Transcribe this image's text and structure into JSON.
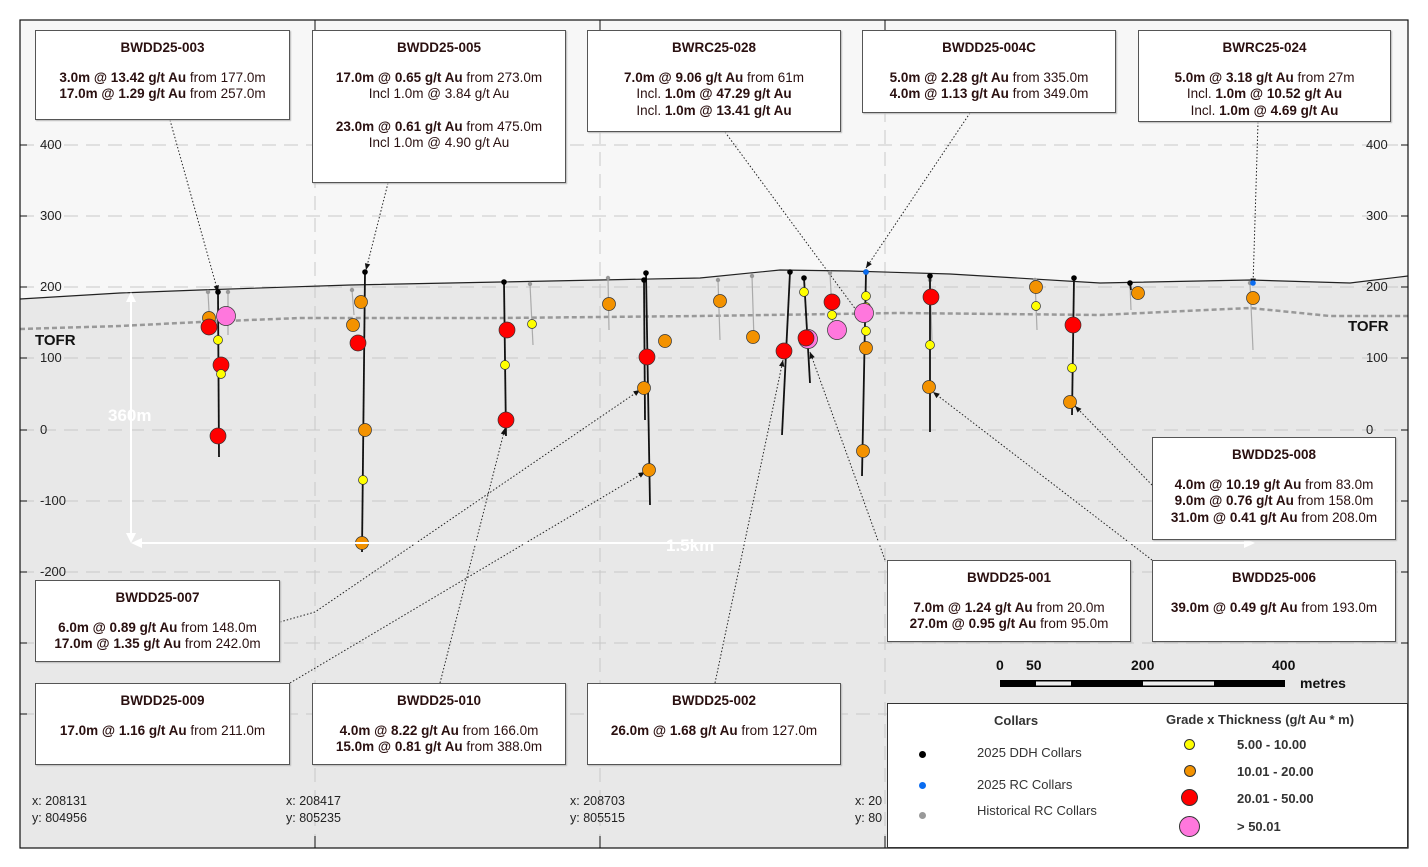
{
  "axis": {
    "elevation_ticks": [
      "400",
      "300",
      "200",
      "100",
      "0",
      "-100",
      "-200"
    ],
    "tofr_label": "TOFR",
    "vertical_scale_label": "360m",
    "horizontal_scale_label": "1.5km"
  },
  "coordinates": [
    {
      "x": "x: 208131",
      "y": "y: 804956"
    },
    {
      "x": "x: 208417",
      "y": "y: 805235"
    },
    {
      "x": "x: 208703",
      "y": "y: 805515"
    },
    {
      "x": "x: 20",
      "y": "y: 80"
    }
  ],
  "intercepts": [
    {
      "id": "BWDD25-003",
      "lines": [
        [
          [
            "3.0m @ 13.42 g/t Au",
            true
          ],
          [
            " from 177.0m",
            false
          ]
        ],
        [
          [
            "17.0m @ 1.29 g/t Au",
            true
          ],
          [
            " from 257.0m",
            false
          ]
        ]
      ]
    },
    {
      "id": "BWDD25-005",
      "lines": [
        [
          [
            "17.0m @ 0.65 g/t Au",
            true
          ],
          [
            " from 273.0m",
            false
          ]
        ],
        [
          [
            "Incl 1.0m @ 3.84 g/t Au",
            false
          ]
        ],
        [],
        [
          [
            "23.0m @ 0.61 g/t Au",
            true
          ],
          [
            " from 475.0m",
            false
          ]
        ],
        [
          [
            "Incl 1.0m @ 4.90 g/t Au",
            false
          ]
        ]
      ]
    },
    {
      "id": "BWRC25-028",
      "lines": [
        [
          [
            "7.0m @ 9.06 g/t Au",
            true
          ],
          [
            " from 61m",
            false
          ]
        ],
        [
          [
            "Incl. ",
            false
          ],
          [
            "1.0m @ 47.29 g/t Au",
            true
          ]
        ],
        [
          [
            "Incl. ",
            false
          ],
          [
            "1.0m @ 13.41 g/t Au",
            true
          ]
        ]
      ]
    },
    {
      "id": "BWDD25-004C",
      "lines": [
        [
          [
            "5.0m @ 2.28 g/t Au",
            true
          ],
          [
            " from 335.0m",
            false
          ]
        ],
        [
          [
            "4.0m @ 1.13 g/t Au",
            true
          ],
          [
            " from 349.0m",
            false
          ]
        ]
      ]
    },
    {
      "id": "BWRC25-024",
      "lines": [
        [
          [
            "5.0m @ 3.18 g/t Au",
            true
          ],
          [
            " from 27m",
            false
          ]
        ],
        [
          [
            "Incl. ",
            false
          ],
          [
            "1.0m @ 10.52 g/t Au",
            true
          ]
        ],
        [
          [
            "Incl. ",
            false
          ],
          [
            "1.0m @ 4.69 g/t Au",
            true
          ]
        ]
      ]
    },
    {
      "id": "BWDD25-008",
      "lines": [
        [
          [
            "4.0m @ 10.19 g/t Au",
            true
          ],
          [
            " from 83.0m",
            false
          ]
        ],
        [
          [
            "9.0m @ 0.76 g/t Au",
            true
          ],
          [
            " from 158.0m",
            false
          ]
        ],
        [
          [
            "31.0m @ 0.41 g/t Au",
            true
          ],
          [
            " from 208.0m",
            false
          ]
        ]
      ]
    },
    {
      "id": "BWDD25-001",
      "lines": [
        [
          [
            "7.0m @ 1.24 g/t Au",
            true
          ],
          [
            " from 20.0m",
            false
          ]
        ],
        [
          [
            "27.0m @ 0.95 g/t Au",
            true
          ],
          [
            " from 95.0m",
            false
          ]
        ]
      ]
    },
    {
      "id": "BWDD25-006",
      "lines": [
        [
          [
            "39.0m @ 0.49 g/t Au",
            true
          ],
          [
            " from 193.0m",
            false
          ]
        ]
      ]
    },
    {
      "id": "BWDD25-007",
      "lines": [
        [
          [
            "6.0m @ 0.89 g/t Au",
            true
          ],
          [
            " from 148.0m",
            false
          ]
        ],
        [
          [
            "17.0m @ 1.35 g/t Au",
            true
          ],
          [
            " from 242.0m",
            false
          ]
        ]
      ]
    },
    {
      "id": "BWDD25-009",
      "lines": [
        [
          [
            "17.0m @ 1.16 g/t Au",
            true
          ],
          [
            " from 211.0m",
            false
          ]
        ]
      ]
    },
    {
      "id": "BWDD25-010",
      "lines": [
        [
          [
            "4.0m @ 8.22 g/t Au",
            true
          ],
          [
            " from 166.0m",
            false
          ]
        ],
        [
          [
            "15.0m @ 0.81 g/t Au",
            true
          ],
          [
            " from 388.0m",
            false
          ]
        ]
      ]
    },
    {
      "id": "BWDD25-002",
      "lines": [
        [
          [
            "26.0m @ 1.68 g/t Au",
            true
          ],
          [
            " from 127.0m",
            false
          ]
        ]
      ]
    }
  ],
  "scale_bar": {
    "labels": [
      "0",
      "50",
      "200",
      "400"
    ],
    "unit": "metres"
  },
  "legend": {
    "collars_title": "Collars",
    "collars": [
      {
        "label": "2025 DDH Collars",
        "color": "#000000"
      },
      {
        "label": "2025 RC Collars",
        "color": "#0a6cf0"
      },
      {
        "label": "Historical RC Collars",
        "color": "#999999"
      }
    ],
    "grade_title": "Grade x Thickness (g/t Au * m)",
    "grades": [
      {
        "label": "5.00 - 10.00",
        "color": "#ffff00"
      },
      {
        "label": "10.01 - 20.00",
        "color": "#f39200"
      },
      {
        "label": "20.01 - 50.00",
        "color": "#ff0000"
      },
      {
        "label": "> 50.01",
        "color": "#ff77dd"
      }
    ]
  }
}
